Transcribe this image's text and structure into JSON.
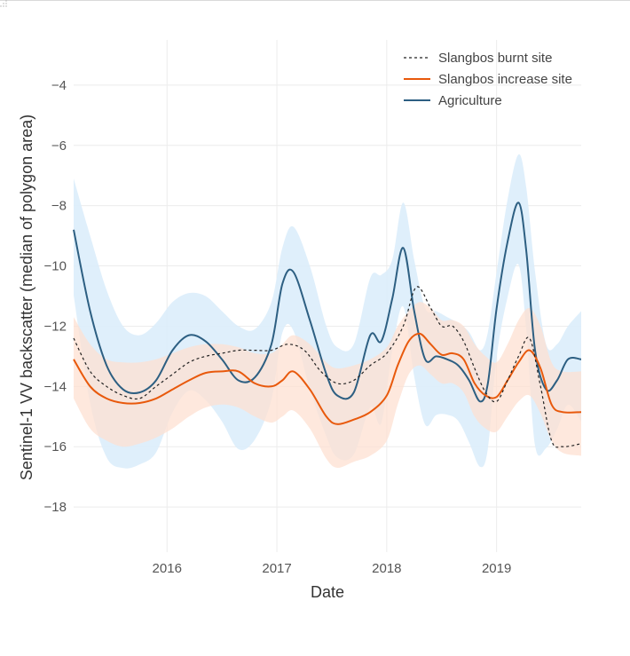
{
  "chart_data": {
    "type": "line",
    "xlabel": "Date",
    "ylabel": "Sentinel-1 VV backscatter (median of polygon area)",
    "xlim": [
      2015.15,
      2019.77
    ],
    "ylim": [
      -19.5,
      -2.5
    ],
    "x_ticks": [
      2016,
      2017,
      2018,
      2019
    ],
    "y_ticks": [
      -18,
      -16,
      -14,
      -12,
      -10,
      -8,
      -6,
      -4
    ],
    "grid": true,
    "legend_position": "top-right",
    "colors": {
      "burnt": "#222222",
      "increase": "#e8590c",
      "increase_band": "#fde0d2",
      "agriculture": "#2d5f82",
      "agriculture_band": "#dcedfb"
    },
    "series": [
      {
        "name": "Slangbos burnt site",
        "style": "dotted",
        "x": [
          2015.15,
          2015.3,
          2015.45,
          2015.6,
          2015.75,
          2015.9,
          2016.05,
          2016.2,
          2016.35,
          2016.5,
          2016.65,
          2016.8,
          2016.95,
          2017.1,
          2017.25,
          2017.4,
          2017.55,
          2017.7,
          2017.85,
          2018.0,
          2018.15,
          2018.27,
          2018.4,
          2018.5,
          2018.6,
          2018.7,
          2018.8,
          2018.9,
          2019.0,
          2019.1,
          2019.2,
          2019.3,
          2019.4,
          2019.5,
          2019.6,
          2019.77
        ],
        "values": [
          -12.4,
          -13.5,
          -14.0,
          -14.3,
          -14.4,
          -14.0,
          -13.6,
          -13.2,
          -13.0,
          -12.9,
          -12.8,
          -12.8,
          -12.8,
          -12.6,
          -12.8,
          -13.5,
          -13.9,
          -13.8,
          -13.3,
          -12.9,
          -12.0,
          -10.7,
          -11.4,
          -12.0,
          -12.0,
          -12.5,
          -13.4,
          -14.2,
          -14.5,
          -13.8,
          -13.0,
          -12.4,
          -14.0,
          -15.8,
          -16.0,
          -15.9
        ]
      },
      {
        "name": "Slangbos increase site",
        "style": "solid",
        "x": [
          2015.15,
          2015.3,
          2015.45,
          2015.6,
          2015.75,
          2015.9,
          2016.05,
          2016.2,
          2016.35,
          2016.5,
          2016.65,
          2016.8,
          2016.95,
          2017.05,
          2017.15,
          2017.3,
          2017.45,
          2017.55,
          2017.7,
          2017.85,
          2018.0,
          2018.1,
          2018.2,
          2018.3,
          2018.4,
          2018.5,
          2018.6,
          2018.7,
          2018.8,
          2018.9,
          2019.0,
          2019.1,
          2019.2,
          2019.3,
          2019.4,
          2019.5,
          2019.6,
          2019.77
        ],
        "values": [
          -13.1,
          -14.0,
          -14.4,
          -14.55,
          -14.55,
          -14.4,
          -14.1,
          -13.8,
          -13.55,
          -13.5,
          -13.5,
          -13.9,
          -14.0,
          -13.8,
          -13.5,
          -14.1,
          -15.0,
          -15.25,
          -15.1,
          -14.85,
          -14.3,
          -13.3,
          -12.5,
          -12.25,
          -12.6,
          -12.95,
          -12.9,
          -13.1,
          -13.9,
          -14.3,
          -14.35,
          -13.8,
          -13.2,
          -12.8,
          -13.4,
          -14.6,
          -14.85,
          -14.85
        ]
      },
      {
        "name": "Agriculture",
        "style": "solid",
        "x": [
          2015.15,
          2015.3,
          2015.45,
          2015.6,
          2015.75,
          2015.9,
          2016.05,
          2016.2,
          2016.35,
          2016.5,
          2016.65,
          2016.8,
          2016.95,
          2017.05,
          2017.15,
          2017.3,
          2017.45,
          2017.55,
          2017.7,
          2017.85,
          2017.95,
          2018.05,
          2018.15,
          2018.25,
          2018.35,
          2018.45,
          2018.55,
          2018.65,
          2018.75,
          2018.85,
          2018.92,
          2019.0,
          2019.1,
          2019.2,
          2019.27,
          2019.35,
          2019.45,
          2019.55,
          2019.65,
          2019.77
        ],
        "values": [
          -8.8,
          -11.5,
          -13.3,
          -14.1,
          -14.2,
          -13.8,
          -12.8,
          -12.3,
          -12.5,
          -13.1,
          -13.8,
          -13.7,
          -12.6,
          -10.6,
          -10.2,
          -11.8,
          -13.6,
          -14.3,
          -14.2,
          -12.3,
          -12.5,
          -11.1,
          -9.4,
          -11.5,
          -13.1,
          -13.0,
          -13.1,
          -13.3,
          -13.8,
          -14.5,
          -13.9,
          -11.4,
          -9.2,
          -7.9,
          -9.5,
          -12.8,
          -14.1,
          -13.8,
          -13.1,
          -13.1
        ]
      }
    ],
    "bands": [
      {
        "series": "Agriculture",
        "x": [
          2015.15,
          2015.3,
          2015.45,
          2015.6,
          2015.75,
          2015.9,
          2016.05,
          2016.2,
          2016.35,
          2016.5,
          2016.65,
          2016.8,
          2016.95,
          2017.05,
          2017.15,
          2017.3,
          2017.45,
          2017.55,
          2017.7,
          2017.85,
          2017.95,
          2018.05,
          2018.15,
          2018.25,
          2018.35,
          2018.45,
          2018.55,
          2018.65,
          2018.75,
          2018.85,
          2018.92,
          2019.0,
          2019.1,
          2019.2,
          2019.27,
          2019.35,
          2019.45,
          2019.55,
          2019.65,
          2019.77
        ],
        "upper": [
          -7.1,
          -9.0,
          -10.8,
          -12.0,
          -12.3,
          -11.9,
          -11.2,
          -10.9,
          -11.0,
          -11.5,
          -12.0,
          -12.1,
          -11.2,
          -9.4,
          -8.7,
          -10.0,
          -12.0,
          -12.7,
          -12.6,
          -10.4,
          -10.3,
          -9.8,
          -7.9,
          -9.8,
          -11.4,
          -11.5,
          -11.7,
          -11.9,
          -12.2,
          -12.8,
          -12.2,
          -10.2,
          -7.8,
          -6.3,
          -7.4,
          -10.2,
          -12.6,
          -12.6,
          -12.0,
          -11.5
        ]
      },
      {
        "series": "Slangbos increase site",
        "x": [
          2015.15,
          2015.3,
          2015.45,
          2015.6,
          2015.75,
          2015.9,
          2016.05,
          2016.2,
          2016.35,
          2016.5,
          2016.65,
          2016.8,
          2016.95,
          2017.05,
          2017.15,
          2017.3,
          2017.45,
          2017.55,
          2017.7,
          2017.85,
          2018.0,
          2018.1,
          2018.2,
          2018.3,
          2018.4,
          2018.5,
          2018.6,
          2018.7,
          2018.8,
          2018.9,
          2019.0,
          2019.1,
          2019.2,
          2019.3,
          2019.4,
          2019.5,
          2019.6,
          2019.77
        ],
        "upper": [
          -11.7,
          -12.6,
          -13.1,
          -13.2,
          -13.2,
          -13.1,
          -12.9,
          -12.7,
          -12.6,
          -12.6,
          -12.7,
          -12.9,
          -12.9,
          -12.6,
          -12.3,
          -12.6,
          -13.2,
          -13.4,
          -13.3,
          -13.1,
          -12.7,
          -12.0,
          -11.5,
          -11.2,
          -11.4,
          -11.8,
          -11.8,
          -12.0,
          -12.6,
          -13.0,
          -13.2,
          -12.6,
          -11.8,
          -11.4,
          -12.0,
          -13.2,
          -13.5,
          -13.5
        ],
        "lower": [
          -14.4,
          -15.4,
          -15.8,
          -16.0,
          -15.9,
          -15.7,
          -15.4,
          -15.0,
          -14.7,
          -14.6,
          -14.7,
          -15.0,
          -15.2,
          -15.0,
          -14.8,
          -15.4,
          -16.4,
          -16.7,
          -16.5,
          -16.3,
          -15.8,
          -14.6,
          -13.6,
          -13.3,
          -13.6,
          -13.9,
          -13.9,
          -14.2,
          -15.0,
          -15.4,
          -15.5,
          -15.0,
          -14.5,
          -14.3,
          -14.9,
          -15.8,
          -16.2,
          -16.3
        ]
      }
    ]
  }
}
